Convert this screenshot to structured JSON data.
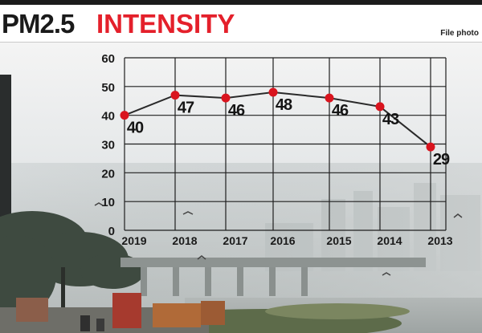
{
  "header": {
    "title_main": "PM2.5",
    "title_accent": "INTENSITY",
    "credit": "File photo"
  },
  "colors": {
    "accent": "#e4202b",
    "marker": "#d9141e",
    "line": "#2a2a2a",
    "grid": "#1f1f1f"
  },
  "chart_data": {
    "type": "line",
    "title": "PM2.5 INTENSITY",
    "categories": [
      "2019",
      "2018",
      "2017",
      "2016",
      "2015",
      "2014",
      "2013"
    ],
    "series": [
      {
        "values": [
          40,
          47,
          46,
          48,
          46,
          43,
          29
        ],
        "labels": [
          "40",
          "47",
          "46",
          "48",
          "46",
          "43",
          "29"
        ]
      }
    ],
    "y_ticks": [
      "60",
      "50",
      "40",
      "30",
      "20",
      "10",
      "0"
    ],
    "ylim": [
      0,
      60
    ],
    "grid": true,
    "background": "smoggy city photo"
  }
}
